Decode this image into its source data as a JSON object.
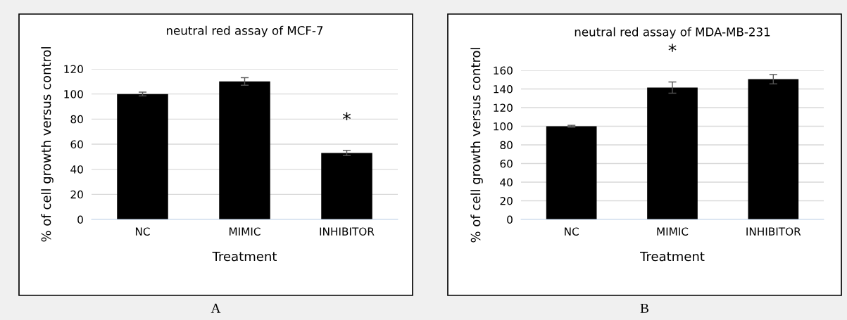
{
  "chart_data": [
    {
      "type": "bar",
      "title": "neutral red assay of MCF-7",
      "xlabel": "Treatment",
      "ylabel": "% of cell growth versus control",
      "categories": [
        "NC",
        "MIMIC",
        "INHIBITOR"
      ],
      "values": [
        100,
        110,
        53
      ],
      "errors": [
        1.5,
        3,
        2
      ],
      "color": "#000000",
      "ylim": [
        0,
        120
      ],
      "yticks": [
        0,
        20,
        40,
        60,
        80,
        100,
        120
      ],
      "grid": "y",
      "annotations": [
        {
          "text": "*",
          "x": "INHIBITOR",
          "y": 55
        },
        "A"
      ]
    },
    {
      "type": "bar",
      "title": "neutral red assay of MDA-MB-231",
      "xlabel": "Treatment",
      "ylabel": "% of cell growth versus control",
      "categories": [
        "NC",
        "MIMIC",
        "INHIBITOR"
      ],
      "values": [
        100,
        141.5,
        150.5
      ],
      "errors": [
        1,
        6,
        5
      ],
      "color": "#000000",
      "ylim": [
        0,
        160
      ],
      "yticks": [
        0,
        20,
        40,
        60,
        80,
        100,
        120,
        140,
        160
      ],
      "grid": "y",
      "annotations": [
        {
          "text": "*",
          "x": "MIMIC",
          "y": 147.5
        },
        "B"
      ]
    }
  ]
}
